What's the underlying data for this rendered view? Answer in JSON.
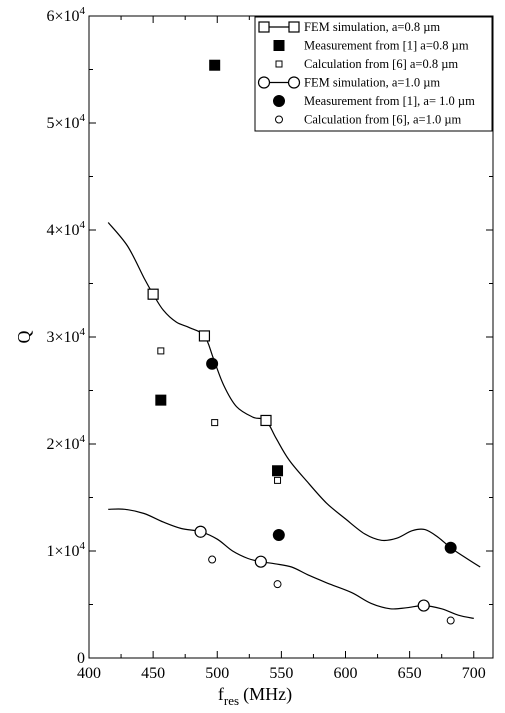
{
  "chart_data": {
    "type": "scatter",
    "xlabel": "f",
    "xlabel_sub": "res",
    "xlabel_unit": "(MHz)",
    "ylabel": "Q",
    "xlim": [
      400,
      715
    ],
    "ylim": [
      0,
      60000
    ],
    "x_ticks": [
      400,
      450,
      500,
      550,
      600,
      650,
      700
    ],
    "y_ticks": [
      {
        "value": 0,
        "label": "0",
        "exp": ""
      },
      {
        "value": 10000,
        "label": "1×10",
        "exp": "4"
      },
      {
        "value": 20000,
        "label": "2×10",
        "exp": "4"
      },
      {
        "value": 30000,
        "label": "3×10",
        "exp": "4"
      },
      {
        "value": 40000,
        "label": "4×10",
        "exp": "4"
      },
      {
        "value": 50000,
        "label": "5×10",
        "exp": "4"
      },
      {
        "value": 60000,
        "label": "6×10",
        "exp": "4"
      }
    ],
    "legend_position": "top-right",
    "series": [
      {
        "name": "FEM simulation, a=0.8 µm",
        "marker": "square-open-large",
        "line": true,
        "points": [
          [
            450,
            34000
          ],
          [
            490,
            30100
          ],
          [
            538,
            22200
          ]
        ],
        "curve": [
          [
            415,
            40700
          ],
          [
            430,
            38500
          ],
          [
            443,
            35500
          ],
          [
            450,
            34000
          ],
          [
            458,
            32500
          ],
          [
            468,
            31400
          ],
          [
            478,
            30900
          ],
          [
            490,
            30100
          ],
          [
            497,
            28000
          ],
          [
            505,
            25500
          ],
          [
            515,
            23500
          ],
          [
            528,
            22500
          ],
          [
            538,
            22200
          ],
          [
            546,
            20500
          ],
          [
            556,
            18500
          ],
          [
            570,
            16500
          ],
          [
            585,
            14500
          ],
          [
            600,
            13000
          ],
          [
            615,
            11600
          ],
          [
            628,
            11000
          ],
          [
            640,
            11200
          ],
          [
            652,
            11900
          ],
          [
            662,
            12000
          ],
          [
            672,
            11300
          ],
          [
            682,
            10300
          ],
          [
            692,
            9500
          ],
          [
            705,
            8500
          ]
        ]
      },
      {
        "name": "Measurement from [1] a=0.8 µm",
        "marker": "square-filled",
        "line": false,
        "points": [
          [
            498,
            55400
          ],
          [
            456,
            24100
          ],
          [
            547,
            17500
          ]
        ]
      },
      {
        "name": "Calculation from [6] a=0.8 µm",
        "marker": "square-open-small",
        "line": false,
        "points": [
          [
            456,
            28700
          ],
          [
            498,
            22000
          ],
          [
            547,
            16600
          ]
        ]
      },
      {
        "name": "FEM simulation, a=1.0 µm",
        "marker": "circle-open-large",
        "line": true,
        "points": [
          [
            487,
            11800
          ],
          [
            534,
            9000
          ],
          [
            661,
            4900
          ]
        ],
        "curve": [
          [
            415,
            13900
          ],
          [
            428,
            13900
          ],
          [
            443,
            13500
          ],
          [
            458,
            12700
          ],
          [
            472,
            12100
          ],
          [
            487,
            11800
          ],
          [
            500,
            11100
          ],
          [
            512,
            10000
          ],
          [
            524,
            9300
          ],
          [
            534,
            9000
          ],
          [
            545,
            8800
          ],
          [
            558,
            8500
          ],
          [
            572,
            7700
          ],
          [
            588,
            6900
          ],
          [
            605,
            6100
          ],
          [
            620,
            5100
          ],
          [
            635,
            4600
          ],
          [
            648,
            4700
          ],
          [
            661,
            4900
          ],
          [
            675,
            4600
          ],
          [
            688,
            4000
          ],
          [
            700,
            3700
          ]
        ]
      },
      {
        "name": "Measurement from [1], a= 1.0 µm",
        "marker": "circle-filled",
        "line": false,
        "points": [
          [
            496,
            27500
          ],
          [
            548,
            11500
          ],
          [
            682,
            10300
          ]
        ]
      },
      {
        "name": "Calculation from [6], a=1.0 µm",
        "marker": "circle-open-small",
        "line": false,
        "points": [
          [
            496,
            9200
          ],
          [
            547,
            6900
          ],
          [
            682,
            3500
          ]
        ]
      }
    ]
  }
}
